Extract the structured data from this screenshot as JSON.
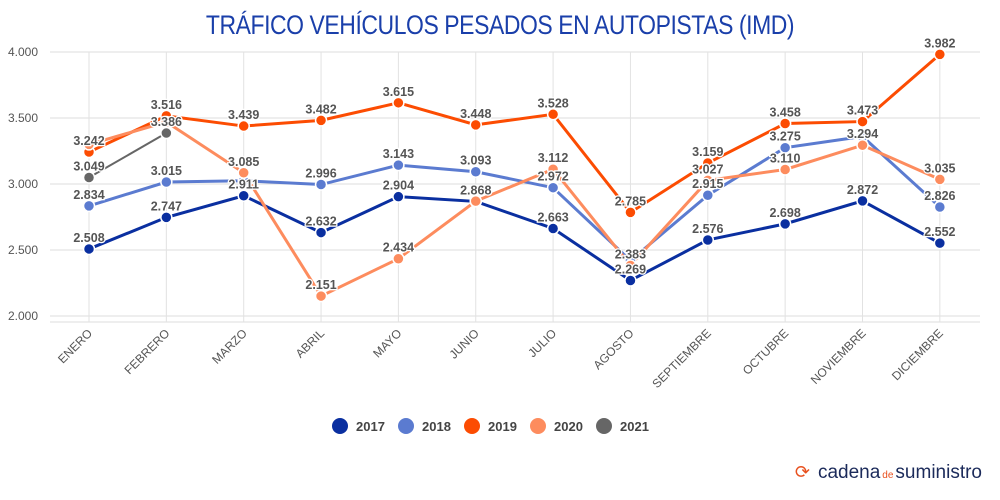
{
  "chart_data": {
    "type": "line",
    "title": "TRÁFICO VEHÍCULOS PESADOS EN AUTOPISTAS (IMD)",
    "categories": [
      "ENERO",
      "FEBRERO",
      "MARZO",
      "ABRIL",
      "MAYO",
      "JUNIO",
      "JULIO",
      "AGOSTO",
      "SEPTIEMBRE",
      "OCTUBRE",
      "NOVIEMBRE",
      "DICIEMBRE"
    ],
    "ylim": [
      2000,
      4000
    ],
    "yticks": [
      {
        "v": 4000,
        "label": "4.000"
      },
      {
        "v": 3500,
        "label": "3.500"
      },
      {
        "v": 3000,
        "label": "3.000"
      },
      {
        "v": 2500,
        "label": "2.500"
      },
      {
        "v": 2000,
        "label": "2.000"
      }
    ],
    "grid": true,
    "legend": "bottom",
    "series": [
      {
        "name": "2017",
        "color": "#0a2fa0",
        "values": [
          2508,
          2747,
          2911,
          2632,
          2904,
          2868,
          2663,
          2269,
          2576,
          2698,
          2872,
          2552
        ],
        "labels": [
          "2.508",
          "2.747",
          "2.911",
          "2.632",
          "2.904",
          "2.868",
          "2.663",
          "2.269",
          "2.576",
          "2.698",
          "2.872",
          "2.552"
        ]
      },
      {
        "name": "2018",
        "color": "#5b7bd0",
        "values": [
          2834,
          3015,
          3025,
          2996,
          3143,
          3093,
          2972,
          2420,
          2915,
          3275,
          3360,
          2826
        ],
        "labels": [
          "2.834",
          "3.015",
          null,
          "2.996",
          "3.143",
          "3.093",
          "2.972",
          null,
          "2.915",
          "3.275",
          null,
          "2.826"
        ]
      },
      {
        "name": "2019",
        "color": "#fc4c02",
        "values": [
          3242,
          3516,
          3439,
          3482,
          3615,
          3448,
          3528,
          2785,
          3159,
          3458,
          3473,
          3982
        ],
        "labels": [
          "3.242",
          "3.516",
          "3.439",
          "3.482",
          "3.615",
          "3.448",
          "3.528",
          "2.785",
          "3.159",
          "3.458",
          "3.473",
          "3.982"
        ]
      },
      {
        "name": "2020",
        "color": "#fd8c5e",
        "values": [
          3300,
          3470,
          3085,
          2151,
          2434,
          2870,
          3112,
          2383,
          3027,
          3110,
          3294,
          3035
        ],
        "labels": [
          null,
          null,
          "3.085",
          "2.151",
          "2.434",
          null,
          "3.112",
          "2.383",
          "3.027",
          "3.110",
          "3.294",
          "3.035"
        ]
      },
      {
        "name": "2021",
        "color": "#666666",
        "values": [
          3049,
          3386,
          null,
          null,
          null,
          null,
          null,
          null,
          null,
          null,
          null,
          null
        ],
        "labels": [
          "3.049",
          "3.386",
          null,
          null,
          null,
          null,
          null,
          null,
          null,
          null,
          null,
          null
        ]
      }
    ]
  },
  "logo": {
    "part1": "cadena",
    "part2": "de",
    "part3": "suministro"
  }
}
